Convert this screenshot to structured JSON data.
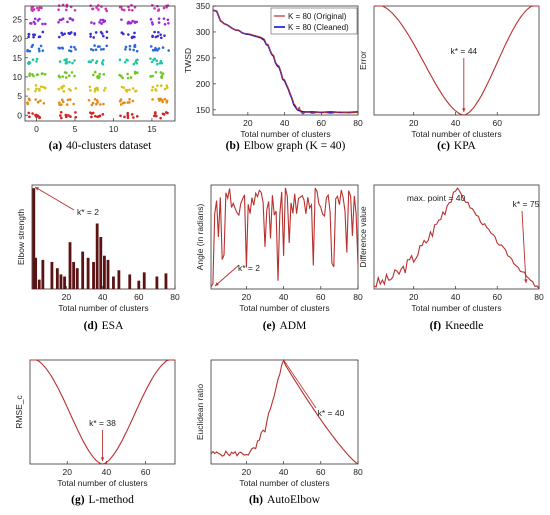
{
  "chart_data": [
    {
      "id": "a",
      "type": "scatter",
      "caption_letter": "(a)",
      "caption_text": "40-clusters dataset",
      "xticks": [
        "0",
        "5",
        "10",
        "15"
      ],
      "yticks": [
        "0",
        "5",
        "10",
        "15",
        "20",
        "25"
      ],
      "xlim": [
        -1.5,
        18
      ],
      "ylim": [
        -1.5,
        28.5
      ],
      "grid_x": [
        0,
        4,
        8,
        12,
        16
      ],
      "grid_y": [
        0,
        3.5,
        7,
        10.5,
        14,
        17.5,
        21,
        24.5,
        28
      ],
      "colors": [
        "#d42020",
        "#e58a1a",
        "#d8c21a",
        "#6fc81f",
        "#1ec7a4",
        "#2a67e0",
        "#3a2bd0",
        "#9a2ad8",
        "#d62fb6"
      ]
    },
    {
      "id": "b",
      "type": "line",
      "caption_letter": "(b)",
      "caption_text": "Elbow graph (K = 40)",
      "ylabel": "TWSD",
      "xlabel": "Total number of clusters",
      "xticks": [
        "20",
        "40",
        "60",
        "80"
      ],
      "yticks": [
        "150",
        "200",
        "250",
        "300",
        "350"
      ],
      "xlim": [
        1,
        80
      ],
      "ylim": [
        140,
        350
      ],
      "legend": [
        "K = 80 (Original)",
        "K = 80 (Cleaned)"
      ],
      "series_colors": [
        "#b8312f",
        "#1010d0"
      ],
      "original": [
        [
          1,
          342
        ],
        [
          3,
          340
        ],
        [
          5,
          322
        ],
        [
          7,
          316
        ],
        [
          9,
          313
        ],
        [
          11,
          308
        ],
        [
          13,
          304
        ],
        [
          15,
          303
        ],
        [
          17,
          298
        ],
        [
          19,
          297
        ],
        [
          21,
          296
        ],
        [
          23,
          294
        ],
        [
          25,
          292
        ],
        [
          27,
          290
        ],
        [
          29,
          286
        ],
        [
          30,
          277
        ],
        [
          31,
          276
        ],
        [
          32,
          266
        ],
        [
          33,
          258
        ],
        [
          34,
          255
        ],
        [
          35,
          242
        ],
        [
          36,
          237
        ],
        [
          37,
          234
        ],
        [
          38,
          224
        ],
        [
          39,
          210
        ],
        [
          40,
          208
        ],
        [
          41,
          200
        ],
        [
          42,
          192
        ],
        [
          43,
          182
        ],
        [
          44,
          174
        ],
        [
          45,
          162
        ],
        [
          46,
          158
        ],
        [
          47,
          150
        ],
        [
          48,
          155
        ],
        [
          49,
          145
        ],
        [
          50,
          142
        ],
        [
          52,
          147
        ],
        [
          55,
          143
        ],
        [
          60,
          146
        ],
        [
          65,
          143
        ],
        [
          70,
          146
        ],
        [
          75,
          144
        ],
        [
          80,
          145
        ]
      ],
      "cleaned": [
        [
          1,
          342
        ],
        [
          3,
          340
        ],
        [
          5,
          322
        ],
        [
          7,
          316
        ],
        [
          9,
          313
        ],
        [
          11,
          308
        ],
        [
          13,
          304
        ],
        [
          15,
          303
        ],
        [
          17,
          298
        ],
        [
          19,
          296
        ],
        [
          21,
          295
        ],
        [
          23,
          293
        ],
        [
          25,
          291
        ],
        [
          27,
          289
        ],
        [
          29,
          284
        ],
        [
          30,
          276
        ],
        [
          31,
          274
        ],
        [
          32,
          265
        ],
        [
          33,
          257
        ],
        [
          34,
          253
        ],
        [
          35,
          241
        ],
        [
          36,
          235
        ],
        [
          37,
          232
        ],
        [
          38,
          222
        ],
        [
          39,
          209
        ],
        [
          40,
          206
        ],
        [
          41,
          198
        ],
        [
          42,
          190
        ],
        [
          43,
          180
        ],
        [
          44,
          172
        ],
        [
          45,
          160
        ],
        [
          46,
          155
        ],
        [
          47,
          150
        ],
        [
          50,
          146
        ],
        [
          55,
          146
        ],
        [
          60,
          145
        ],
        [
          65,
          146
        ],
        [
          70,
          145
        ],
        [
          75,
          145
        ],
        [
          80,
          146
        ]
      ]
    },
    {
      "id": "c",
      "type": "line",
      "caption_letter": "(c)",
      "caption_text": "KPA",
      "ylabel": "Error",
      "xlabel": "Total number of clusters",
      "xticks": [
        "20",
        "40",
        "60"
      ],
      "xlim": [
        1,
        80
      ],
      "ylim": [
        0,
        1
      ],
      "annotation": "k* = 44",
      "optimum_x": 44,
      "series_color": "#b8312f"
    },
    {
      "id": "d",
      "type": "bar",
      "caption_letter": "(d)",
      "caption_text": "ESA",
      "ylabel": "Elbow strength",
      "xlabel": "Total number of clusters",
      "xticks": [
        "20",
        "40",
        "60",
        "80"
      ],
      "xlim": [
        1,
        80
      ],
      "ylim": [
        0,
        1
      ],
      "annotation": "k* = 2",
      "bars": [
        [
          2,
          0.97
        ],
        [
          3,
          0.3
        ],
        [
          5,
          0.09
        ],
        [
          7,
          0.28
        ],
        [
          12,
          0.26
        ],
        [
          15,
          0.2
        ],
        [
          17,
          0.14
        ],
        [
          19,
          0.12
        ],
        [
          22,
          0.45
        ],
        [
          24,
          0.26
        ],
        [
          26,
          0.2
        ],
        [
          29,
          0.36
        ],
        [
          32,
          0.3
        ],
        [
          35,
          0.26
        ],
        [
          37,
          0.63
        ],
        [
          39,
          0.5
        ],
        [
          41,
          0.32
        ],
        [
          43,
          0.28
        ],
        [
          46,
          0.12
        ],
        [
          49,
          0.18
        ],
        [
          55,
          0.14
        ],
        [
          60,
          0.08
        ],
        [
          63,
          0.16
        ],
        [
          70,
          0.12
        ],
        [
          75,
          0.15
        ]
      ],
      "bar_color": "#5a1212"
    },
    {
      "id": "e",
      "type": "line",
      "caption_letter": "(e)",
      "caption_text": "ADM",
      "ylabel": "Angle (in radians)",
      "xlabel": "Total number of clusters",
      "xticks": [
        "20",
        "40",
        "60",
        "80"
      ],
      "xlim": [
        1,
        80
      ],
      "ylim": [
        0,
        1
      ],
      "annotation": "k* = 2",
      "series_color": "#b8312f"
    },
    {
      "id": "f",
      "type": "line",
      "caption_letter": "(f)",
      "caption_text": "Kneedle",
      "ylabel": "Difference value",
      "xlabel": "Total number of clusters",
      "xticks": [
        "20",
        "40",
        "60",
        "80"
      ],
      "xlim": [
        1,
        80
      ],
      "ylim": [
        0,
        1
      ],
      "annotation_left": "max. point = 40",
      "annotation_right": "k* = 75",
      "series_color": "#b8312f"
    },
    {
      "id": "g",
      "type": "line",
      "caption_letter": "(g)",
      "caption_text": "L-method",
      "ylabel": "RMSE_c",
      "xlabel": "Total number of clusters",
      "xticks": [
        "20",
        "40",
        "60"
      ],
      "xlim": [
        1,
        75
      ],
      "ylim": [
        0,
        1
      ],
      "annotation": "k* = 38",
      "optimum_x": 38,
      "series_color": "#b8312f"
    },
    {
      "id": "h",
      "type": "line",
      "caption_letter": "(h)",
      "caption_text": "AutoElbow",
      "ylabel": "Euclidean ratio",
      "xlabel": "Total number of clusters",
      "xticks": [
        "20",
        "40",
        "60",
        "80"
      ],
      "xlim": [
        1,
        80
      ],
      "ylim": [
        0,
        1
      ],
      "annotation": "k* = 40",
      "series_color": "#b8312f"
    }
  ]
}
